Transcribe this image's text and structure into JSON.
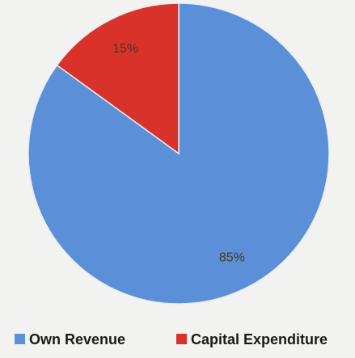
{
  "chart_data": {
    "type": "pie",
    "categories": [
      "Own Revenue",
      "Capital Expenditure"
    ],
    "values": [
      85,
      15
    ],
    "value_labels": [
      "85%",
      "15%"
    ],
    "colors": [
      "#5b8fd8",
      "#d9322b"
    ],
    "legend": "bottom"
  }
}
